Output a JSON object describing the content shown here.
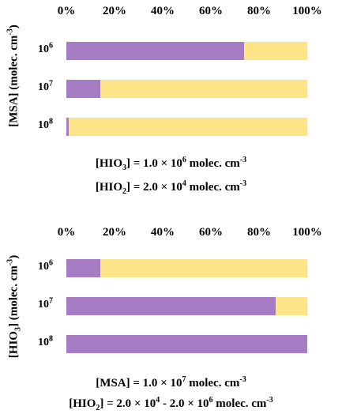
{
  "colors": {
    "purple": "#a67cc4",
    "yellow": "#fde489"
  },
  "chart_data": [
    {
      "type": "bar",
      "orientation": "horizontal-stacked-percent",
      "x_ticks": [
        "0%",
        "20%",
        "40%",
        "60%",
        "80%",
        "100%"
      ],
      "xlim": [
        0,
        100
      ],
      "ylabel_parts": [
        "[MSA] (molec. cm",
        "-3",
        ")"
      ],
      "categories": [
        {
          "base": "10",
          "exp": "6"
        },
        {
          "base": "10",
          "exp": "7"
        },
        {
          "base": "10",
          "exp": "8"
        }
      ],
      "series": [
        {
          "color": "purple",
          "values": [
            73.9,
            14.0,
            1.0
          ]
        },
        {
          "color": "yellow",
          "values": [
            26.1,
            86.0,
            99.0
          ]
        }
      ],
      "annotations": [
        {
          "parts": [
            "[HIO",
            "3",
            "] = 1.0 × 10",
            "6",
            " molec. cm",
            "-3"
          ]
        },
        {
          "parts": [
            "[HIO",
            "2",
            "] = 2.0 × 10",
            "4",
            " molec. cm",
            "-3"
          ]
        }
      ]
    },
    {
      "type": "bar",
      "orientation": "horizontal-stacked-percent",
      "x_ticks": [
        "0%",
        "20%",
        "40%",
        "60%",
        "80%",
        "100%"
      ],
      "xlim": [
        0,
        100
      ],
      "ylabel_parts": [
        "[HIO",
        "3",
        "] (molec. cm",
        "-3",
        ")"
      ],
      "categories": [
        {
          "base": "10",
          "exp": "6"
        },
        {
          "base": "10",
          "exp": "7"
        },
        {
          "base": "10",
          "exp": "8"
        }
      ],
      "series": [
        {
          "color": "purple",
          "values": [
            14.0,
            87.0,
            100.0
          ]
        },
        {
          "color": "yellow",
          "values": [
            86.0,
            13.0,
            0.0
          ]
        }
      ],
      "annotations": [
        {
          "parts": [
            "[MSA] = 1.0 × 10",
            "7",
            " molec. cm",
            "-3"
          ]
        },
        {
          "parts": [
            "[HIO",
            "2",
            "] = 2.0 × 10",
            "4",
            " - 2.0 × 10",
            "6",
            " molec. cm",
            "-3"
          ]
        }
      ]
    }
  ]
}
